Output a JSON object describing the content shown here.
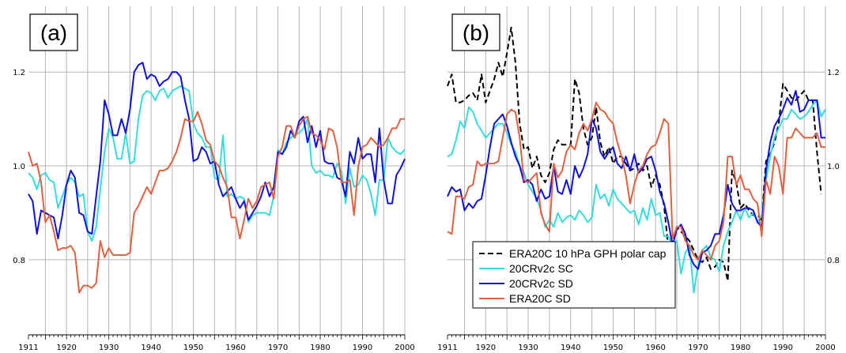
{
  "chart_data": [
    {
      "type": "line",
      "panel_label": "(a)",
      "x_start": 1911,
      "xlim": [
        1911,
        2000
      ],
      "ylim": [
        0.64,
        1.34
      ],
      "yticks": [
        "0.8",
        "1.0",
        "1.2"
      ],
      "xticks": [
        "1911",
        "1920",
        "1930",
        "1940",
        "1950",
        "1960",
        "1970",
        "1980",
        "1990",
        "2000"
      ],
      "series": [
        {
          "name": "20CRv2c SC",
          "color": "#33dddd",
          "style": "solid",
          "values": [
            0.985,
            0.975,
            0.95,
            0.98,
            0.985,
            0.97,
            0.965,
            0.91,
            0.935,
            0.96,
            0.975,
            0.965,
            0.935,
            0.94,
            0.86,
            0.84,
            0.87,
            0.95,
            1.03,
            1.08,
            1.06,
            1.015,
            1.015,
            1.07,
            1.005,
            1.01,
            1.1,
            1.15,
            1.16,
            1.155,
            1.14,
            1.16,
            1.165,
            1.145,
            1.16,
            1.165,
            1.17,
            1.165,
            1.16,
            1.09,
            1.07,
            1.06,
            1.04,
            1.04,
            0.975,
            0.97,
            1.065,
            0.935,
            0.94,
            0.93,
            0.935,
            0.93,
            0.88,
            0.895,
            0.9,
            0.9,
            0.9,
            0.895,
            0.935,
            1.035,
            1.025,
            1.05,
            1.06,
            1.065,
            1.07,
            1.08,
            1.1,
            1.0,
            0.985,
            0.99,
            0.98,
            0.98,
            0.975,
            1.005,
            0.99,
            0.92,
            0.995,
            0.955,
            0.96,
            0.98,
            0.97,
            0.94,
            0.895,
            0.97,
            0.97,
            1.06,
            1.04,
            1.03,
            1.025,
            1.035
          ]
        },
        {
          "name": "20CRv2c SD",
          "color": "#1010dd",
          "style": "solid",
          "values": [
            0.94,
            0.925,
            0.855,
            0.905,
            0.9,
            0.895,
            0.89,
            0.845,
            0.895,
            0.96,
            0.99,
            0.975,
            0.9,
            0.895,
            0.86,
            0.855,
            0.935,
            1.01,
            1.14,
            1.11,
            1.065,
            1.065,
            1.1,
            1.07,
            1.12,
            1.2,
            1.215,
            1.22,
            1.185,
            1.195,
            1.19,
            1.17,
            1.18,
            1.185,
            1.2,
            1.2,
            1.19,
            1.14,
            1.1,
            1.01,
            1.015,
            1.04,
            1.03,
            1.005,
            1.01,
            0.96,
            0.935,
            0.945,
            0.955,
            0.93,
            0.91,
            0.925,
            0.885,
            0.9,
            0.915,
            0.935,
            0.965,
            0.935,
            0.955,
            1.03,
            1.025,
            1.04,
            1.075,
            1.06,
            1.095,
            1.105,
            1.05,
            1.085,
            1.04,
            1.075,
            1.01,
            1.005,
            1.005,
            0.975,
            0.97,
            0.935,
            1.03,
            1.005,
            1.06,
            1.015,
            1.025,
            1.025,
            0.965,
            1.08,
            0.97,
            0.92,
            0.92,
            0.98,
            0.995,
            1.015
          ]
        },
        {
          "name": "ERA20C SD",
          "color": "#e06040",
          "style": "solid",
          "values": [
            1.03,
            1.0,
            1.005,
            0.965,
            0.88,
            0.895,
            0.86,
            0.82,
            0.825,
            0.825,
            0.83,
            0.815,
            0.73,
            0.745,
            0.745,
            0.74,
            0.75,
            0.84,
            0.805,
            0.825,
            0.81,
            0.81,
            0.81,
            0.81,
            0.815,
            0.9,
            0.915,
            0.935,
            0.955,
            0.94,
            0.965,
            0.99,
            0.99,
            0.995,
            1.01,
            1.03,
            1.06,
            1.1,
            1.095,
            1.095,
            1.115,
            1.09,
            1.055,
            1.045,
            1.01,
            1.0,
            0.975,
            0.955,
            0.89,
            0.89,
            0.845,
            0.885,
            0.93,
            0.91,
            0.925,
            0.955,
            0.96,
            0.965,
            0.93,
            1.02,
            1.04,
            1.085,
            1.085,
            1.06,
            1.085,
            1.1,
            1.105,
            1.07,
            1.065,
            1.055,
            1.035,
            1.08,
            1.075,
            1.04,
            0.965,
            0.965,
            0.97,
            0.895,
            1.0,
            1.04,
            1.045,
            1.06,
            1.05,
            1.04,
            1.045,
            1.06,
            1.08,
            1.08,
            1.1,
            1.1
          ]
        }
      ]
    },
    {
      "type": "line",
      "panel_label": "(b)",
      "x_start": 1911,
      "xlim": [
        1911,
        2000
      ],
      "ylim": [
        0.64,
        1.34
      ],
      "yticks": [
        "0.8",
        "1.0",
        "1.2"
      ],
      "xticks": [
        "1911",
        "1920",
        "1930",
        "1940",
        "1950",
        "1960",
        "1970",
        "1980",
        "1990",
        "2000"
      ],
      "legend": {
        "position": "bottom-center"
      },
      "series": [
        {
          "name": "ERA20C 10 hPa GPH polar cap",
          "color": "#000000",
          "style": "dashed",
          "values": [
            1.17,
            1.195,
            1.135,
            1.135,
            1.14,
            1.15,
            1.155,
            1.14,
            1.195,
            1.135,
            1.16,
            1.185,
            1.22,
            1.19,
            1.24,
            1.295,
            1.22,
            1.09,
            1.035,
            1.04,
            0.995,
            1.02,
            0.98,
            0.965,
            0.985,
            1.035,
            1.055,
            1.045,
            1.045,
            1.045,
            1.185,
            1.155,
            1.08,
            1.045,
            1.06,
            1.125,
            1.05,
            1.02,
            1.04,
            1.005,
            1.02,
            1.02,
            1.005,
            0.99,
            0.995,
            1.005,
            0.99,
            1.0,
            0.955,
            0.98,
            0.96,
            0.915,
            0.825,
            0.835,
            0.87,
            0.86,
            0.85,
            0.84,
            0.82,
            0.8,
            0.795,
            0.805,
            0.78,
            0.785,
            0.8,
            0.795,
            0.755,
            0.99,
            0.965,
            0.91,
            0.92,
            0.905,
            0.895,
            0.895,
            0.885,
            1.01,
            1.025,
            1.05,
            1.09,
            1.175,
            1.16,
            1.145,
            1.14,
            1.15,
            1.16,
            1.14,
            1.14,
            1.03,
            0.94
          ]
        },
        {
          "name": "20CRv2c SC",
          "color": "#33dddd",
          "style": "solid",
          "values": [
            1.02,
            1.025,
            1.055,
            1.095,
            1.08,
            1.125,
            1.115,
            1.09,
            1.075,
            1.06,
            1.07,
            1.08,
            1.09,
            1.09,
            1.07,
            1.045,
            1.03,
            1.0,
            0.985,
            0.96,
            0.945,
            0.93,
            0.905,
            0.87,
            0.885,
            0.87,
            0.9,
            0.88,
            0.89,
            0.895,
            0.885,
            0.905,
            0.895,
            0.88,
            0.89,
            0.96,
            0.93,
            0.94,
            0.915,
            0.95,
            0.93,
            0.92,
            0.91,
            0.9,
            0.905,
            0.875,
            0.91,
            0.885,
            0.93,
            0.895,
            0.9,
            0.85,
            0.85,
            0.83,
            0.84,
            0.77,
            0.815,
            0.83,
            0.73,
            0.79,
            0.82,
            0.83,
            0.805,
            0.8,
            0.775,
            0.83,
            0.86,
            0.88,
            0.905,
            0.885,
            0.91,
            0.89,
            0.9,
            0.88,
            0.895,
            0.97,
            1.02,
            1.06,
            1.08,
            1.1,
            1.1,
            1.12,
            1.11,
            1.1,
            1.105,
            1.115,
            1.13,
            1.14,
            1.105,
            1.12
          ]
        },
        {
          "name": "20CRv2c SD",
          "color": "#1010dd",
          "style": "solid",
          "values": [
            0.935,
            0.955,
            0.945,
            0.95,
            0.905,
            0.92,
            0.91,
            0.925,
            0.93,
            0.98,
            1.04,
            1.09,
            1.1,
            1.11,
            1.085,
            1.05,
            1.02,
            1.0,
            0.965,
            0.97,
            0.96,
            0.925,
            0.95,
            0.93,
            0.935,
            1.0,
            0.945,
            0.94,
            0.97,
            0.94,
            1.0,
            0.975,
            0.995,
            1.025,
            1.1,
            1.08,
            1.03,
            1.015,
            1.03,
            1.04,
            1.005,
            0.995,
            1.02,
            0.99,
            1.025,
            0.985,
            0.995,
            1.015,
            1.02,
            0.99,
            0.945,
            0.92,
            0.88,
            0.83,
            0.865,
            0.875,
            0.855,
            0.81,
            0.79,
            0.78,
            0.815,
            0.82,
            0.83,
            0.855,
            0.855,
            0.895,
            0.96,
            0.92,
            0.905,
            0.905,
            0.91,
            0.91,
            0.905,
            0.88,
            0.87,
            0.99,
            1.05,
            1.085,
            1.1,
            1.12,
            1.145,
            1.13,
            1.16,
            1.115,
            1.12,
            1.14,
            1.14,
            1.14,
            1.06,
            1.06
          ]
        },
        {
          "name": "ERA20C SD",
          "color": "#e06040",
          "style": "solid",
          "values": [
            0.86,
            0.855,
            0.935,
            0.935,
            0.93,
            0.955,
            0.96,
            1.01,
            1.0,
            1.005,
            1.005,
            1.005,
            1.01,
            1.06,
            1.11,
            1.12,
            1.115,
            1.06,
            0.97,
            0.965,
            0.975,
            0.985,
            0.9,
            0.875,
            0.86,
            1.005,
            0.975,
            0.99,
            1.03,
            1.045,
            1.035,
            1.07,
            1.09,
            1.075,
            1.1,
            1.135,
            1.12,
            1.115,
            1.1,
            1.09,
            1.05,
            1.02,
            0.98,
            0.92,
            0.96,
            0.99,
            1.0,
            1.025,
            1.04,
            1.045,
            1.07,
            1.1,
            1.09,
            0.845,
            0.87,
            0.87,
            0.84,
            0.83,
            0.81,
            0.8,
            0.82,
            0.81,
            0.8,
            0.83,
            0.84,
            0.88,
            1.02,
            1.02,
            0.96,
            0.98,
            0.95,
            0.95,
            0.93,
            0.92,
            0.85,
            0.97,
            0.94,
            1.02,
            1.0,
            0.94,
            1.06,
            1.06,
            1.08,
            1.07,
            1.06,
            1.06,
            1.06,
            1.07,
            1.04,
            1.04
          ]
        }
      ]
    }
  ]
}
